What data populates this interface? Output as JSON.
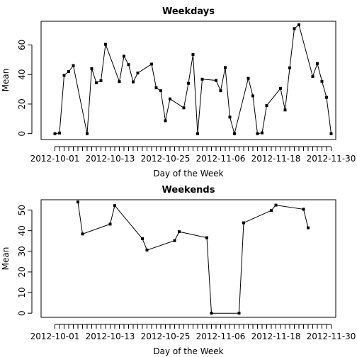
{
  "chart_data": [
    {
      "type": "line",
      "title": "Weekdays",
      "xlabel": "Day of the Week",
      "ylabel": "Mean",
      "xlim": [
        "2012-09-28",
        "2012-12-01"
      ],
      "ylim": [
        -4,
        76
      ],
      "xticks": [
        "2012-10-01",
        "2012-10-13",
        "2012-10-25",
        "2012-11-06",
        "2012-11-18",
        "2012-11-30"
      ],
      "yticks": [
        0,
        20,
        40,
        60
      ],
      "series": [
        {
          "x": [
            "2012-10-01",
            "2012-10-02",
            "2012-10-03",
            "2012-10-04",
            "2012-10-05",
            "2012-10-08",
            "2012-10-09",
            "2012-10-10",
            "2012-10-11",
            "2012-10-12",
            "2012-10-15",
            "2012-10-16",
            "2012-10-17",
            "2012-10-18",
            "2012-10-19",
            "2012-10-22",
            "2012-10-23",
            "2012-10-24",
            "2012-10-25",
            "2012-10-26",
            "2012-10-29",
            "2012-10-30",
            "2012-10-31",
            "2012-11-01",
            "2012-11-02",
            "2012-11-05",
            "2012-11-06",
            "2012-11-07",
            "2012-11-08",
            "2012-11-09",
            "2012-11-12",
            "2012-11-13",
            "2012-11-14",
            "2012-11-15",
            "2012-11-16",
            "2012-11-19",
            "2012-11-20",
            "2012-11-21",
            "2012-11-22",
            "2012-11-23",
            "2012-11-26",
            "2012-11-27",
            "2012-11-28",
            "2012-11-29",
            "2012-11-30"
          ],
          "y": [
            0,
            0.4,
            39.4,
            42,
            46,
            0,
            44,
            34.4,
            35.8,
            60.4,
            35.2,
            52.4,
            46.7,
            35,
            41,
            47,
            31,
            29,
            8.7,
            23.5,
            17.4,
            34,
            53.5,
            0,
            36.8,
            36,
            29,
            44.7,
            11.2,
            0,
            37.4,
            25.5,
            0,
            0.5,
            19,
            30.6,
            16,
            44.5,
            71,
            73.6,
            38.6,
            47.4,
            35.4,
            24.5,
            0
          ]
        }
      ]
    },
    {
      "type": "line",
      "title": "Weekends",
      "xlabel": "Day of the Week",
      "ylabel": "Mean",
      "xlim": [
        "2012-09-28",
        "2012-12-01"
      ],
      "ylim": [
        -2,
        55
      ],
      "xticks": [
        "2012-10-01",
        "2012-10-13",
        "2012-10-25",
        "2012-11-06",
        "2012-11-18",
        "2012-11-30"
      ],
      "yticks": [
        0,
        10,
        20,
        30,
        40,
        50
      ],
      "series": [
        {
          "x": [
            "2012-10-06",
            "2012-10-07",
            "2012-10-13",
            "2012-10-14",
            "2012-10-20",
            "2012-10-21",
            "2012-10-27",
            "2012-10-28",
            "2012-11-03",
            "2012-11-04",
            "2012-11-10",
            "2012-11-11",
            "2012-11-17",
            "2012-11-18",
            "2012-11-24",
            "2012-11-25"
          ],
          "y": [
            53.9,
            38.4,
            43.2,
            52.2,
            36.1,
            30.6,
            35.2,
            39.5,
            36.6,
            0,
            0,
            43.8,
            49.8,
            52.4,
            50.4,
            41.4
          ]
        }
      ]
    }
  ]
}
